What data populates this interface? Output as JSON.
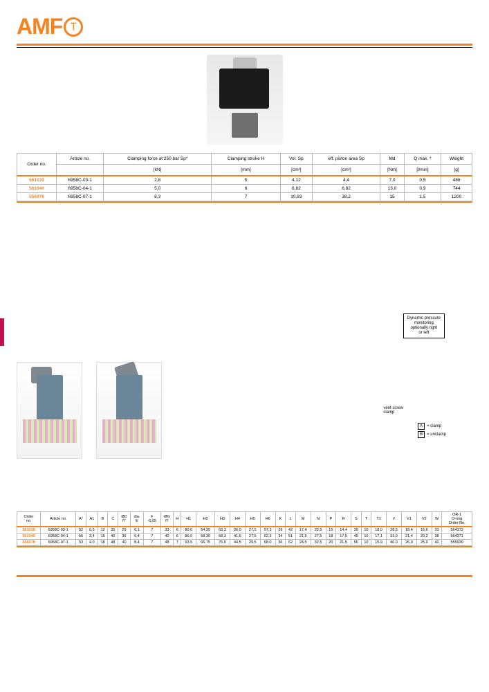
{
  "logo": {
    "text": "AMF"
  },
  "note": {
    "line1": "Dynamic pressure",
    "line2": "monitoring",
    "line3": "optionally right",
    "line4": "or left"
  },
  "vent": {
    "l1": "vent screw",
    "l2": "clamp"
  },
  "legend": {
    "a": "A",
    "al": "= clamp",
    "b": "B",
    "bl": "= unclamp"
  },
  "t1": {
    "headers": {
      "order": "Order\nno.",
      "article": "Article no.",
      "cf": "Clamping force at 250 bar Sp*",
      "cf_u": "[kN]",
      "cs": "Clamping stroke H",
      "cs_u": "[mm]",
      "vol": "Vol. Sp",
      "vol_u": "[cm³]",
      "eff": "eff. piston\narea Sp",
      "eff_u": "[cm²]",
      "md": "Md",
      "md_u": "[Nm]",
      "q": "Q max. *",
      "q_u": "[l/min]",
      "w": "Weight",
      "w_u": "[g]"
    },
    "rows": [
      {
        "order": "561039",
        "art": "6958C-03-1",
        "cf": "2,8",
        "cs": "5",
        "vol": "4,12",
        "eff": "4,4",
        "md": "7,0",
        "q": "0,5",
        "w": "486"
      },
      {
        "order": "561040",
        "art": "6958C-04-1",
        "cf": "5,0",
        "cs": "6",
        "vol": "6,82",
        "eff": "6,82",
        "md": "13,0",
        "q": "0,9",
        "w": "744"
      },
      {
        "order": "556978",
        "art": "6958C-07-1",
        "cf": "8,3",
        "cs": "7",
        "vol": "10,83",
        "eff": "38,2",
        "md": "15",
        "q": "1,5",
        "w": "1200"
      }
    ]
  },
  "t2": {
    "headers": [
      "Order\nno.",
      "Article no.",
      "A°",
      "A1",
      "B",
      "C",
      "ØD\nf7",
      "dia.\nE",
      "F\n-0.05",
      "ØG\nf7",
      "H",
      "H1",
      "H2",
      "H3",
      "H4",
      "H5",
      "H6",
      "K",
      "L",
      "M",
      "N",
      "P",
      "R",
      "S",
      "T",
      "T1",
      "V",
      "V1",
      "V2",
      "W",
      "OR-1\nO-ring\nOrder No."
    ],
    "rows": [
      [
        "561039",
        "6958C-03-1",
        "52",
        "0,5",
        "12",
        "35",
        "29",
        "6,1",
        "7",
        "33",
        "6",
        "80,0",
        "54,30",
        "63,3",
        "36,0",
        "27,5",
        "57,3",
        "29",
        "42",
        "17,4",
        "22,5",
        "15",
        "14,4",
        "39",
        "10",
        "18,0",
        "28,5",
        "18,4",
        "16,6",
        "33",
        "564372"
      ],
      [
        "561040",
        "6958C-04-1",
        "56",
        "3,4",
        "15",
        "40",
        "36",
        "6,4",
        "7",
        "40",
        "6",
        "86,0",
        "58,30",
        "68,3",
        "41,5",
        "27,5",
        "62,3",
        "34",
        "51",
        "21,5",
        "27,5",
        "18",
        "17,5",
        "45",
        "10",
        "17,1",
        "33,0",
        "21,4",
        "20,2",
        "38",
        "564371"
      ],
      [
        "556978",
        "6958C-07-1",
        "53",
        "4,0",
        "18",
        "48",
        "40",
        "8,4",
        "7",
        "48",
        "7",
        "93,5",
        "66,75",
        "75,0",
        "44,5",
        "29,5",
        "68,0",
        "36",
        "62",
        "24,5",
        "32,5",
        "20",
        "21,5",
        "56",
        "10",
        "15,9",
        "40,0",
        "26,0",
        "25,0",
        "40",
        "555939"
      ]
    ]
  }
}
